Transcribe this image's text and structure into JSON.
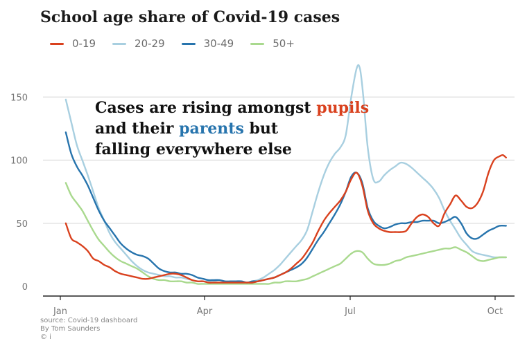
{
  "chart_data": {
    "type": "line",
    "title": "School age share of Covid-19 cases",
    "xlabel": "",
    "ylabel": "",
    "ylim": [
      0,
      175
    ],
    "y_ticks": [
      0,
      50,
      100,
      150
    ],
    "x_ticks": [
      "Jan",
      "Apr",
      "Jul",
      "Oct"
    ],
    "xlim": [
      0,
      39.6
    ],
    "grid": true,
    "legend_position": "top-left",
    "annotation": {
      "line1": [
        "Cases are rising amongst ",
        "pupils"
      ],
      "line2": [
        "and their ",
        "parents",
        " but"
      ],
      "line3": [
        "falling everywhere else"
      ]
    },
    "series": [
      {
        "name": "0-19",
        "color": "#d9411e",
        "points": [
          [
            0.5,
            50
          ],
          [
            1,
            38
          ],
          [
            1.5,
            35
          ],
          [
            2,
            32
          ],
          [
            2.5,
            28
          ],
          [
            3,
            22
          ],
          [
            3.5,
            20
          ],
          [
            4,
            17
          ],
          [
            4.5,
            15
          ],
          [
            5,
            12
          ],
          [
            5.5,
            10
          ],
          [
            6,
            9
          ],
          [
            6.5,
            8
          ],
          [
            7,
            7
          ],
          [
            7.5,
            6
          ],
          [
            8,
            6
          ],
          [
            8.5,
            7
          ],
          [
            9,
            8
          ],
          [
            9.5,
            9
          ],
          [
            10,
            10
          ],
          [
            10.5,
            10
          ],
          [
            11,
            9
          ],
          [
            11.5,
            7
          ],
          [
            12,
            5
          ],
          [
            12.5,
            4
          ],
          [
            13,
            4
          ],
          [
            13.5,
            3
          ],
          [
            14,
            3
          ],
          [
            14.5,
            3
          ],
          [
            15,
            3
          ],
          [
            15.5,
            3
          ],
          [
            16,
            3
          ],
          [
            16.5,
            3
          ],
          [
            17,
            3
          ],
          [
            17.5,
            3
          ],
          [
            18,
            4
          ],
          [
            18.5,
            5
          ],
          [
            19,
            6
          ],
          [
            19.5,
            7
          ],
          [
            20,
            9
          ],
          [
            20.5,
            11
          ],
          [
            21,
            14
          ],
          [
            21.5,
            18
          ],
          [
            22,
            22
          ],
          [
            22.5,
            28
          ],
          [
            23,
            35
          ],
          [
            23.5,
            44
          ],
          [
            24,
            52
          ],
          [
            24.5,
            58
          ],
          [
            25,
            63
          ],
          [
            25.5,
            68
          ],
          [
            26,
            75
          ],
          [
            26.5,
            85
          ],
          [
            27,
            90
          ],
          [
            27.5,
            80
          ],
          [
            28,
            60
          ],
          [
            28.5,
            50
          ],
          [
            29,
            46
          ],
          [
            29.5,
            44
          ],
          [
            30,
            43
          ],
          [
            30.5,
            43
          ],
          [
            31,
            43
          ],
          [
            31.5,
            44
          ],
          [
            32,
            50
          ],
          [
            32.5,
            55
          ],
          [
            33,
            57
          ],
          [
            33.5,
            55
          ],
          [
            34,
            50
          ],
          [
            34.5,
            48
          ],
          [
            35,
            58
          ],
          [
            35.5,
            65
          ],
          [
            36,
            72
          ],
          [
            36.5,
            68
          ],
          [
            37,
            63
          ],
          [
            37.5,
            62
          ],
          [
            38,
            66
          ],
          [
            38.5,
            75
          ],
          [
            39,
            90
          ],
          [
            39.5,
            100
          ],
          [
            40,
            103
          ],
          [
            40.3,
            104
          ],
          [
            40.6,
            102
          ]
        ]
      },
      {
        "name": "20-29",
        "color": "#a8cfe0",
        "points": [
          [
            0.5,
            148
          ],
          [
            1,
            130
          ],
          [
            1.5,
            112
          ],
          [
            2,
            100
          ],
          [
            2.5,
            88
          ],
          [
            3,
            75
          ],
          [
            3.5,
            62
          ],
          [
            4,
            52
          ],
          [
            4.5,
            42
          ],
          [
            5,
            35
          ],
          [
            5.5,
            30
          ],
          [
            6,
            25
          ],
          [
            6.5,
            20
          ],
          [
            7,
            16
          ],
          [
            7.5,
            13
          ],
          [
            8,
            11
          ],
          [
            8.5,
            10
          ],
          [
            9,
            9
          ],
          [
            9.5,
            8
          ],
          [
            10,
            8
          ],
          [
            10.5,
            7
          ],
          [
            11,
            7
          ],
          [
            11.5,
            6
          ],
          [
            12,
            5
          ],
          [
            12.5,
            4
          ],
          [
            13,
            4
          ],
          [
            13.5,
            4
          ],
          [
            14,
            4
          ],
          [
            14.5,
            3
          ],
          [
            15,
            3
          ],
          [
            15.5,
            3
          ],
          [
            16,
            3
          ],
          [
            16.5,
            3
          ],
          [
            17,
            3
          ],
          [
            17.5,
            4
          ],
          [
            18,
            5
          ],
          [
            18.5,
            7
          ],
          [
            19,
            10
          ],
          [
            19.5,
            13
          ],
          [
            20,
            17
          ],
          [
            20.5,
            22
          ],
          [
            21,
            27
          ],
          [
            21.5,
            32
          ],
          [
            22,
            37
          ],
          [
            22.5,
            45
          ],
          [
            23,
            60
          ],
          [
            23.5,
            75
          ],
          [
            24,
            88
          ],
          [
            24.5,
            98
          ],
          [
            25,
            105
          ],
          [
            25.5,
            110
          ],
          [
            26,
            120
          ],
          [
            26.5,
            150
          ],
          [
            27,
            173
          ],
          [
            27.3,
            172
          ],
          [
            27.6,
            150
          ],
          [
            28,
            110
          ],
          [
            28.5,
            85
          ],
          [
            29,
            83
          ],
          [
            29.5,
            88
          ],
          [
            30,
            92
          ],
          [
            30.5,
            95
          ],
          [
            31,
            98
          ],
          [
            31.5,
            97
          ],
          [
            32,
            94
          ],
          [
            32.5,
            90
          ],
          [
            33,
            86
          ],
          [
            33.5,
            82
          ],
          [
            34,
            77
          ],
          [
            34.5,
            70
          ],
          [
            35,
            60
          ],
          [
            35.5,
            52
          ],
          [
            36,
            45
          ],
          [
            36.5,
            38
          ],
          [
            37,
            33
          ],
          [
            37.5,
            28
          ],
          [
            38,
            26
          ],
          [
            38.5,
            25
          ],
          [
            39,
            24
          ],
          [
            39.5,
            23
          ],
          [
            40,
            23
          ],
          [
            40.6,
            23
          ]
        ]
      },
      {
        "name": "30-49",
        "color": "#2774ad",
        "points": [
          [
            0.5,
            122
          ],
          [
            1,
            105
          ],
          [
            1.5,
            95
          ],
          [
            2,
            88
          ],
          [
            2.5,
            80
          ],
          [
            3,
            70
          ],
          [
            3.5,
            60
          ],
          [
            4,
            52
          ],
          [
            4.5,
            46
          ],
          [
            5,
            40
          ],
          [
            5.5,
            34
          ],
          [
            6,
            30
          ],
          [
            6.5,
            27
          ],
          [
            7,
            25
          ],
          [
            7.5,
            24
          ],
          [
            8,
            22
          ],
          [
            8.5,
            18
          ],
          [
            9,
            14
          ],
          [
            9.5,
            12
          ],
          [
            10,
            11
          ],
          [
            10.5,
            11
          ],
          [
            11,
            10
          ],
          [
            11.5,
            10
          ],
          [
            12,
            9
          ],
          [
            12.5,
            7
          ],
          [
            13,
            6
          ],
          [
            13.5,
            5
          ],
          [
            14,
            5
          ],
          [
            14.5,
            5
          ],
          [
            15,
            4
          ],
          [
            15.5,
            4
          ],
          [
            16,
            4
          ],
          [
            16.5,
            4
          ],
          [
            17,
            3
          ],
          [
            17.5,
            4
          ],
          [
            18,
            4
          ],
          [
            18.5,
            5
          ],
          [
            19,
            6
          ],
          [
            19.5,
            7
          ],
          [
            20,
            9
          ],
          [
            20.5,
            11
          ],
          [
            21,
            13
          ],
          [
            21.5,
            15
          ],
          [
            22,
            18
          ],
          [
            22.5,
            23
          ],
          [
            23,
            30
          ],
          [
            23.5,
            37
          ],
          [
            24,
            43
          ],
          [
            24.5,
            50
          ],
          [
            25,
            57
          ],
          [
            25.5,
            65
          ],
          [
            26,
            75
          ],
          [
            26.5,
            87
          ],
          [
            27,
            90
          ],
          [
            27.5,
            82
          ],
          [
            28,
            62
          ],
          [
            28.5,
            52
          ],
          [
            29,
            48
          ],
          [
            29.5,
            46
          ],
          [
            30,
            47
          ],
          [
            30.5,
            49
          ],
          [
            31,
            50
          ],
          [
            31.5,
            50
          ],
          [
            32,
            51
          ],
          [
            32.5,
            51
          ],
          [
            33,
            52
          ],
          [
            33.5,
            52
          ],
          [
            34,
            52
          ],
          [
            34.5,
            50
          ],
          [
            35,
            51
          ],
          [
            35.5,
            53
          ],
          [
            36,
            55
          ],
          [
            36.5,
            50
          ],
          [
            37,
            42
          ],
          [
            37.5,
            38
          ],
          [
            38,
            38
          ],
          [
            38.5,
            41
          ],
          [
            39,
            44
          ],
          [
            39.5,
            46
          ],
          [
            40,
            48
          ],
          [
            40.6,
            48
          ]
        ]
      },
      {
        "name": "50+",
        "color": "#a9d98e",
        "points": [
          [
            0.5,
            82
          ],
          [
            1,
            72
          ],
          [
            1.5,
            66
          ],
          [
            2,
            60
          ],
          [
            2.5,
            52
          ],
          [
            3,
            44
          ],
          [
            3.5,
            37
          ],
          [
            4,
            32
          ],
          [
            4.5,
            27
          ],
          [
            5,
            23
          ],
          [
            5.5,
            20
          ],
          [
            6,
            18
          ],
          [
            6.5,
            16
          ],
          [
            7,
            14
          ],
          [
            7.5,
            11
          ],
          [
            8,
            8
          ],
          [
            8.5,
            6
          ],
          [
            9,
            5
          ],
          [
            9.5,
            5
          ],
          [
            10,
            4
          ],
          [
            10.5,
            4
          ],
          [
            11,
            4
          ],
          [
            11.5,
            3
          ],
          [
            12,
            3
          ],
          [
            12.5,
            2
          ],
          [
            13,
            2
          ],
          [
            13.5,
            2
          ],
          [
            14,
            2
          ],
          [
            14.5,
            2
          ],
          [
            15,
            2
          ],
          [
            15.5,
            2
          ],
          [
            16,
            2
          ],
          [
            16.5,
            2
          ],
          [
            17,
            2
          ],
          [
            17.5,
            2
          ],
          [
            18,
            2
          ],
          [
            18.5,
            2
          ],
          [
            19,
            2
          ],
          [
            19.5,
            3
          ],
          [
            20,
            3
          ],
          [
            20.5,
            4
          ],
          [
            21,
            4
          ],
          [
            21.5,
            4
          ],
          [
            22,
            5
          ],
          [
            22.5,
            6
          ],
          [
            23,
            8
          ],
          [
            23.5,
            10
          ],
          [
            24,
            12
          ],
          [
            24.5,
            14
          ],
          [
            25,
            16
          ],
          [
            25.5,
            18
          ],
          [
            26,
            22
          ],
          [
            26.5,
            26
          ],
          [
            27,
            28
          ],
          [
            27.5,
            27
          ],
          [
            28,
            22
          ],
          [
            28.5,
            18
          ],
          [
            29,
            17
          ],
          [
            29.5,
            17
          ],
          [
            30,
            18
          ],
          [
            30.5,
            20
          ],
          [
            31,
            21
          ],
          [
            31.5,
            23
          ],
          [
            32,
            24
          ],
          [
            32.5,
            25
          ],
          [
            33,
            26
          ],
          [
            33.5,
            27
          ],
          [
            34,
            28
          ],
          [
            34.5,
            29
          ],
          [
            35,
            30
          ],
          [
            35.5,
            30
          ],
          [
            36,
            31
          ],
          [
            36.5,
            29
          ],
          [
            37,
            27
          ],
          [
            37.5,
            24
          ],
          [
            38,
            21
          ],
          [
            38.5,
            20
          ],
          [
            39,
            21
          ],
          [
            39.5,
            22
          ],
          [
            40,
            23
          ],
          [
            40.6,
            23
          ]
        ]
      }
    ],
    "source_lines": [
      "source: Covid-19 dashboard",
      "By Tom Saunders",
      "© i"
    ]
  }
}
